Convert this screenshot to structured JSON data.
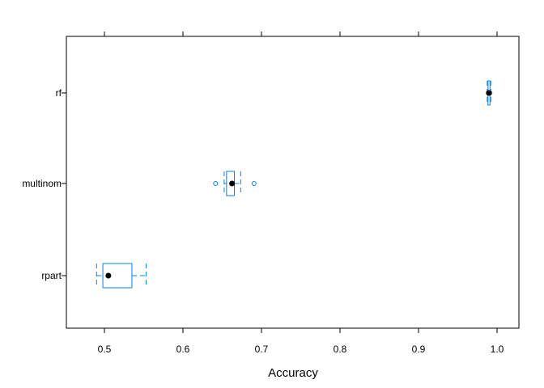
{
  "chart_data": {
    "type": "box",
    "title": "",
    "xlabel": "Accuracy",
    "ylabel": "",
    "xlim": [
      0.457,
      0.643
    ],
    "xticks": [
      0.5,
      0.6,
      0.7,
      0.8,
      0.9,
      1.0
    ],
    "xtick_labels": [
      "0.5",
      "0.6",
      "0.7",
      "0.8",
      "0.9",
      "1.0"
    ],
    "grid": false,
    "legend": "none",
    "box_color": "#0080ff",
    "median_color": "#000000",
    "categories": [
      "rf",
      "multinom",
      "rpart"
    ],
    "boxes": [
      {
        "name": "rf",
        "whisker_low": 0.9875,
        "q1": 0.9885,
        "median": 0.9895,
        "q3": 0.991,
        "whisker_high": 0.992,
        "outliers": [
          0.991
        ]
      },
      {
        "name": "multinom",
        "whisker_low": 0.6525,
        "q1": 0.6555,
        "median": 0.6625,
        "q3": 0.6655,
        "whisker_high": 0.6735,
        "outliers": [
          0.6415,
          0.6905
        ]
      },
      {
        "name": "rpart",
        "whisker_low": 0.49,
        "q1": 0.498,
        "median": 0.505,
        "q3": 0.535,
        "whisker_high": 0.553,
        "outliers": []
      }
    ]
  }
}
